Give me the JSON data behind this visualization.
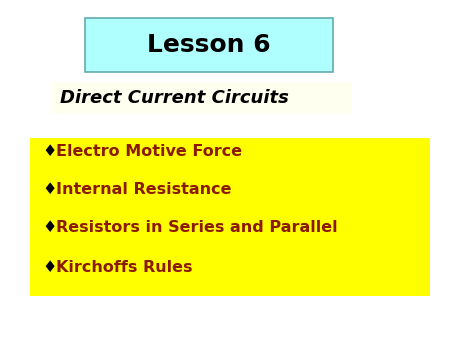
{
  "background_color": "#ffffff",
  "title_text": "Lesson 6",
  "title_box_color": "#b0ffff",
  "title_box_edge_color": "#66aaaa",
  "subtitle_text": "Direct Current Circuits",
  "subtitle_box_color": "#fffff0",
  "bullet_box_color": "#ffff00",
  "bullet_items": [
    "Electro Motive Force",
    "Internal Resistance",
    "Resistors in Series and Parallel",
    "Kirchoffs Rules"
  ],
  "bullet_color": "#8b1a00",
  "bullet_font_size": 11.5,
  "title_font_size": 18,
  "subtitle_font_size": 13
}
